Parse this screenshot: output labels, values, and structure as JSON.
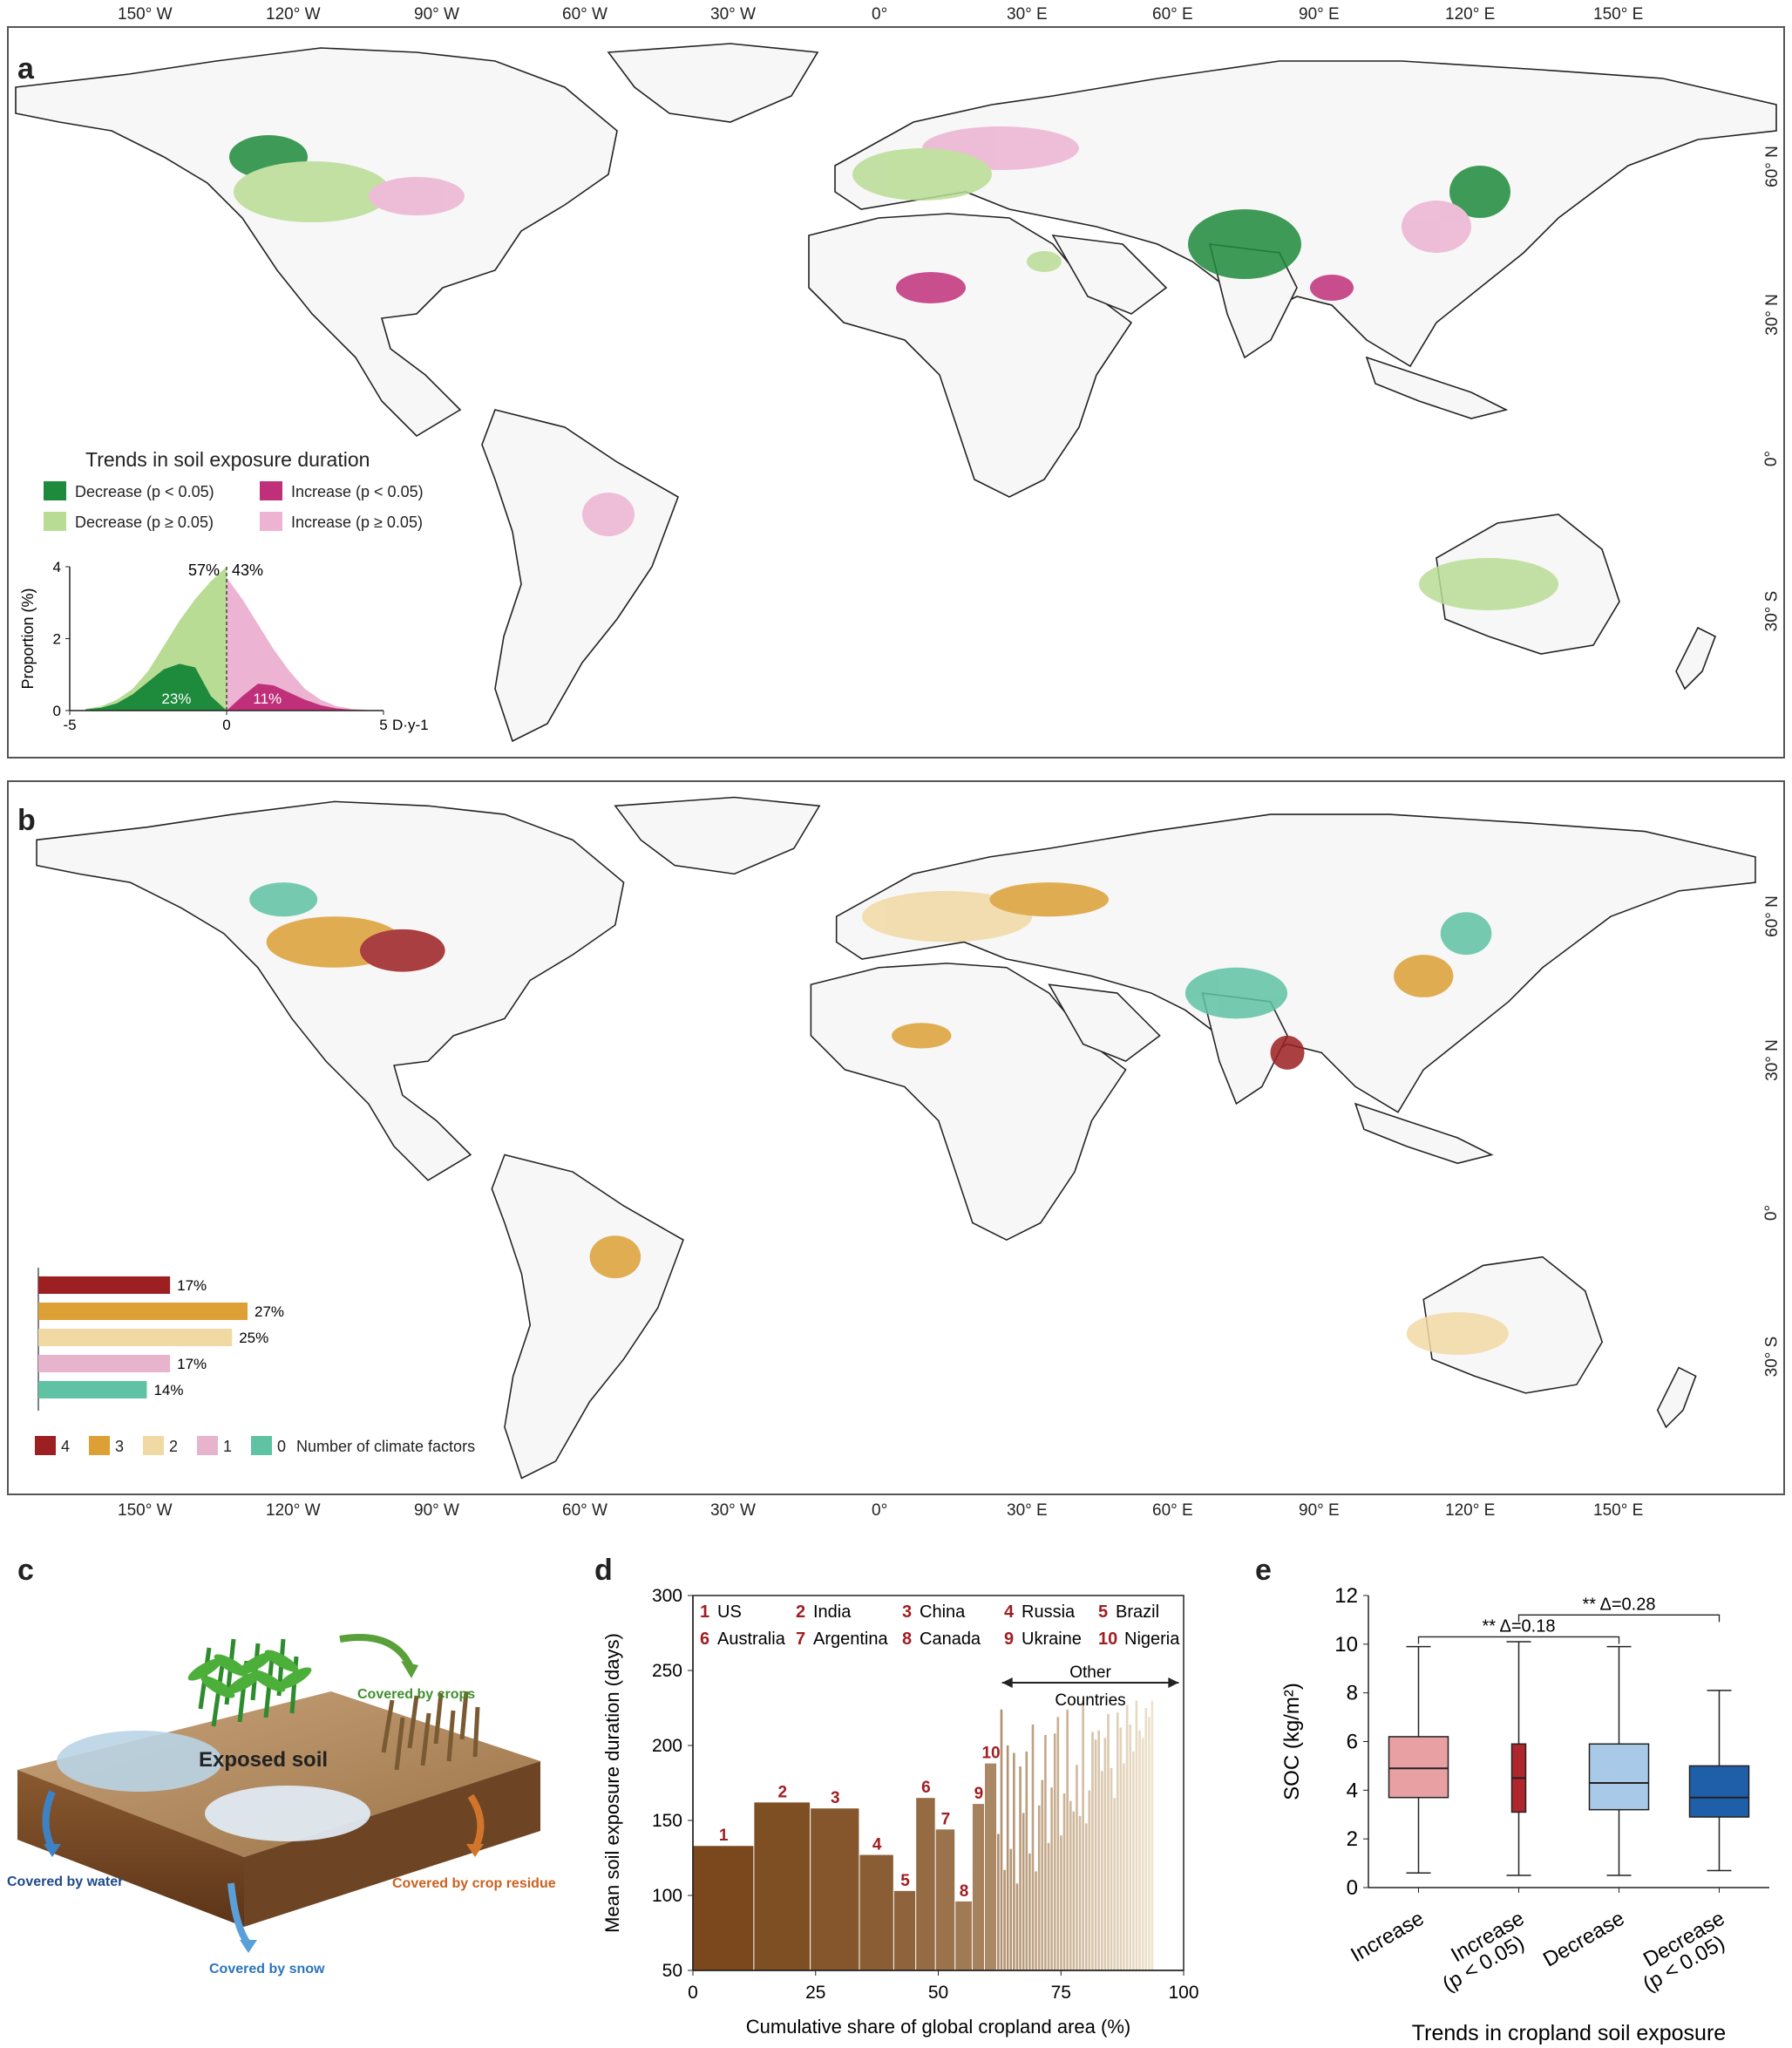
{
  "panels": {
    "a": "a",
    "b": "b",
    "c": "c",
    "d": "d",
    "e": "e"
  },
  "map": {
    "lon_ticks": [
      "150° W",
      "120° W",
      "90° W",
      "60° W",
      "30° W",
      "0°",
      "30° E",
      "60° E",
      "90° E",
      "120° E",
      "150° E"
    ],
    "lat_ticks_a": [
      "60° N",
      "30° N",
      "0°",
      "30° S"
    ],
    "lat_ticks_b": [
      "60° N",
      "30° N",
      "0°",
      "30° S"
    ]
  },
  "legend_a": {
    "title": "Trends in soil exposure duration",
    "items": [
      {
        "label": "Decrease (p < 0.05)",
        "color": "#1e8a3c"
      },
      {
        "label": "Increase (p < 0.05)",
        "color": "#c0307a"
      },
      {
        "label": "Decrease (p ≥ 0.05)",
        "color": "#b8dc94"
      },
      {
        "label": "Increase (p ≥ 0.05)",
        "color": "#ecb4d2"
      }
    ]
  },
  "legend_b": {
    "items": [
      {
        "label": "4",
        "color": "#9c1f22"
      },
      {
        "label": "3",
        "color": "#dca035"
      },
      {
        "label": "2",
        "color": "#f1d9a4"
      },
      {
        "label": "1",
        "color": "#e8b3cc"
      },
      {
        "label": "0",
        "color": "#5ec2a3"
      }
    ],
    "caption": "Number of climate factors"
  },
  "chart_data": [
    {
      "id": "a-inset",
      "type": "area",
      "ylabel": "Proportion (%)",
      "xlabel": "D·y-1",
      "xlim": [
        -5,
        5
      ],
      "ylim": [
        0,
        4
      ],
      "x_ticks": [
        "-5",
        "0",
        "5"
      ],
      "y_ticks": [
        "0",
        "2",
        "4"
      ],
      "annotations": [
        "57%",
        "43%",
        "23%",
        "11%"
      ],
      "series": [
        {
          "name": "Decrease (p ≥ 0.05)",
          "x": [
            -4.5,
            -4,
            -3.5,
            -3,
            -2.5,
            -2,
            -1.5,
            -1,
            -0.5,
            0
          ],
          "values": [
            0.05,
            0.12,
            0.3,
            0.6,
            1.1,
            1.8,
            2.5,
            3.1,
            3.6,
            4.0
          ]
        },
        {
          "name": "Decrease (p < 0.05)",
          "x": [
            -4.5,
            -4,
            -3.5,
            -3,
            -2.5,
            -2,
            -1.5,
            -1,
            -0.5,
            0
          ],
          "values": [
            0.03,
            0.08,
            0.2,
            0.45,
            0.8,
            1.15,
            1.3,
            1.2,
            0.4,
            0
          ]
        },
        {
          "name": "Increase (p ≥ 0.05)",
          "x": [
            0,
            0.5,
            1,
            1.5,
            2,
            2.5,
            3,
            3.5,
            4,
            4.5
          ],
          "values": [
            3.7,
            3.1,
            2.4,
            1.7,
            1.1,
            0.6,
            0.3,
            0.12,
            0.05,
            0.02
          ]
        },
        {
          "name": "Increase (p < 0.05)",
          "x": [
            0,
            0.5,
            1,
            1.5,
            2,
            2.5,
            3,
            3.5,
            4,
            4.5
          ],
          "values": [
            0,
            0.4,
            0.75,
            0.7,
            0.5,
            0.3,
            0.15,
            0.06,
            0.02,
            0.01
          ]
        }
      ]
    },
    {
      "id": "b-inset",
      "type": "bar",
      "orientation": "horizontal",
      "categories": [
        "4",
        "3",
        "2",
        "1",
        "0"
      ],
      "values": [
        17,
        27,
        25,
        17,
        14
      ],
      "value_labels": [
        "17%",
        "27%",
        "25%",
        "17%",
        "14%"
      ],
      "colors": [
        "#9c1f22",
        "#dca035",
        "#f1d9a4",
        "#e8b3cc",
        "#5ec2a3"
      ]
    },
    {
      "id": "d",
      "type": "bar",
      "xlabel": "Cumulative share of global cropland area (%)",
      "ylabel": "Mean soil exposure duration (days)",
      "xlim": [
        0,
        100
      ],
      "ylim": [
        50,
        300
      ],
      "x_ticks": [
        "0",
        "25",
        "50",
        "75",
        "100"
      ],
      "y_ticks": [
        "50",
        "100",
        "150",
        "200",
        "250",
        "300"
      ],
      "countries": [
        {
          "rank": "1",
          "name": "US",
          "start": 0,
          "end": 12.5,
          "value": 133
        },
        {
          "rank": "2",
          "name": "India",
          "start": 12.5,
          "end": 24,
          "value": 162
        },
        {
          "rank": "3",
          "name": "China",
          "start": 24,
          "end": 34,
          "value": 158
        },
        {
          "rank": "4",
          "name": "Russia",
          "start": 34,
          "end": 41,
          "value": 127
        },
        {
          "rank": "5",
          "name": "Brazil",
          "start": 41,
          "end": 45.5,
          "value": 103
        },
        {
          "rank": "6",
          "name": "Australia",
          "start": 45.5,
          "end": 49.5,
          "value": 165
        },
        {
          "rank": "7",
          "name": "Argentina",
          "start": 49.5,
          "end": 53.5,
          "value": 144
        },
        {
          "rank": "8",
          "name": "Canada",
          "start": 53.5,
          "end": 57,
          "value": 96
        },
        {
          "rank": "9",
          "name": "Ukraine",
          "start": 57,
          "end": 59.5,
          "value": 161
        },
        {
          "rank": "10",
          "name": "Nigeria",
          "start": 59.5,
          "end": 62,
          "value": 188
        }
      ],
      "other_label": "Other",
      "other_label2": "Countries",
      "other_values": [
        141,
        224,
        117,
        200,
        131,
        195,
        108,
        186,
        155,
        196,
        128,
        214,
        116,
        160,
        177,
        207,
        135,
        172,
        208,
        219,
        140,
        168,
        224,
        163,
        156,
        187,
        153,
        230,
        148,
        170,
        209,
        204,
        210,
        183,
        205,
        221,
        185,
        165,
        222,
        212,
        188,
        227,
        214,
        196,
        230,
        210,
        205,
        225,
        219,
        230
      ]
    },
    {
      "id": "e",
      "type": "box",
      "xlabel": "Trends in cropland soil exposure",
      "ylabel": "SOC (kg/m²)",
      "ylim": [
        0,
        12
      ],
      "y_ticks": [
        "0",
        "2",
        "4",
        "6",
        "8",
        "10",
        "12"
      ],
      "categories": [
        "Increase",
        "Increase\n(p < 0.05)",
        "Decrease",
        "Decrease\n(p < 0.05)"
      ],
      "boxes": [
        {
          "whisker_low": 0.6,
          "q1": 3.7,
          "median": 4.9,
          "q3": 6.2,
          "whisker_high": 9.9,
          "color": "#e8a0a2"
        },
        {
          "whisker_low": 0.5,
          "q1": 3.1,
          "median": 4.5,
          "q3": 5.9,
          "whisker_high": 10.1,
          "color": "#b0262d"
        },
        {
          "whisker_low": 0.5,
          "q1": 3.2,
          "median": 4.3,
          "q3": 5.9,
          "whisker_high": 9.9,
          "color": "#a9c9e9"
        },
        {
          "whisker_low": 0.7,
          "q1": 2.9,
          "median": 3.7,
          "q3": 5.0,
          "whisker_high": 8.1,
          "color": "#1f5ea8"
        }
      ],
      "brackets": [
        {
          "from": 0,
          "to": 2,
          "level": 10.3,
          "label": "**  Δ=0.18"
        },
        {
          "from": 1,
          "to": 3,
          "level": 11.2,
          "label": "**  Δ=0.28"
        }
      ]
    }
  ],
  "panel_c": {
    "covered_by_crops": "Covered by crops",
    "exposed_soil": "Exposed soil",
    "covered_by_water": "Covered by water",
    "covered_by_crop_residue": "Covered by crop residue",
    "covered_by_snow": "Covered by snow"
  }
}
